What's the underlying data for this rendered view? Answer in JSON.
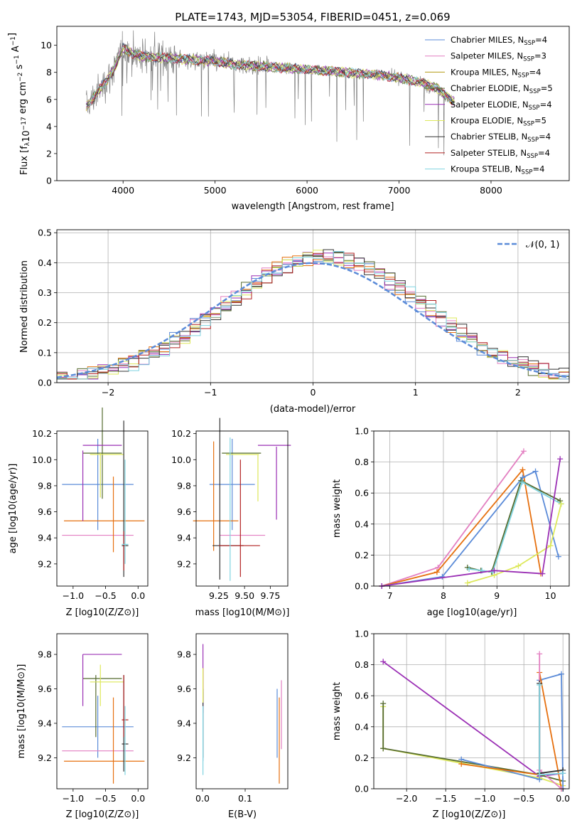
{
  "chart_data": [
    {
      "id": "spectrum",
      "type": "line",
      "title": "PLATE=1743, MJD=53054, FIBERID=0451, z=0.069",
      "xlabel": "wavelength [Angstrom, rest frame]",
      "ylabel": "Flux [f$_\\lambda$10$^{-17}$ erg cm$^{-2}$ s$^{-1}$ A$^{-1}$]",
      "ylabel_parts": [
        "Flux [f",
        "λ",
        "10",
        "−17",
        " erg cm",
        "−2",
        " s",
        "−1",
        " A",
        "−1",
        "]"
      ],
      "xlim": [
        3280,
        8850
      ],
      "ylim": [
        0,
        11.4
      ],
      "xticks": [
        4000,
        5000,
        6000,
        7000,
        8000
      ],
      "yticks": [
        0,
        2,
        4,
        6,
        8,
        10
      ],
      "data_color": "#808080",
      "continuum": {
        "x": [
          3600,
          3700,
          3800,
          3900,
          4000,
          4100,
          4200,
          4400,
          4600,
          4800,
          5000,
          5200,
          5400,
          5600,
          5800,
          6000,
          6200,
          6400,
          6600,
          6800,
          7000,
          7200,
          7400,
          7600
        ],
        "y": [
          5.5,
          6.3,
          7.2,
          8.2,
          9.8,
          9.4,
          9.2,
          9.1,
          9.0,
          8.9,
          8.8,
          8.6,
          8.5,
          8.4,
          8.3,
          8.2,
          8.1,
          8.0,
          7.9,
          7.8,
          7.6,
          7.3,
          6.9,
          5.8
        ]
      },
      "legend_location": "upper right",
      "series": [
        {
          "name_main": "Chabrier MILES, N",
          "name_sub": "SSP",
          "name_tail": "=4",
          "color": "#5b8bd8"
        },
        {
          "name_main": "Salpeter MILES, N",
          "name_sub": "SSP",
          "name_tail": "=3",
          "color": "#e37fc1"
        },
        {
          "name_main": "Kroupa MILES, N",
          "name_sub": "SSP",
          "name_tail": "=4",
          "color": "#b59c14"
        },
        {
          "name_main": "Chabrier ELODIE, N",
          "name_sub": "SSP",
          "name_tail": "=5",
          "color": "#556b2f"
        },
        {
          "name_main": "Salpeter ELODIE, N",
          "name_sub": "SSP",
          "name_tail": "=4",
          "color": "#9b30b5"
        },
        {
          "name_main": "Kroupa ELODIE, N",
          "name_sub": "SSP",
          "name_tail": "=5",
          "color": "#dde85a"
        },
        {
          "name_main": "Chabrier STELIB, N",
          "name_sub": "SSP",
          "name_tail": "=4",
          "color": "#333333"
        },
        {
          "name_main": "Salpeter STELIB, N",
          "name_sub": "SSP",
          "name_tail": "=4",
          "color": "#b22222"
        },
        {
          "name_main": "Kroupa STELIB, N",
          "name_sub": "SSP",
          "name_tail": "=4",
          "color": "#7fd4e0"
        }
      ]
    },
    {
      "id": "residuals",
      "type": "line",
      "xlabel": "(data-model)/error",
      "ylabel": "Normed distribution",
      "xlim": [
        -2.5,
        2.5
      ],
      "ylim": [
        0,
        0.51
      ],
      "xticks": [
        -2,
        -1,
        0,
        1,
        2
      ],
      "xtick_labels": [
        "−2",
        "−1",
        "0",
        "1",
        "2"
      ],
      "yticks": [
        0.0,
        0.1,
        0.2,
        0.3,
        0.4,
        0.5
      ],
      "ytick_labels": [
        "0.0",
        "0.1",
        "0.2",
        "0.3",
        "0.4",
        "0.5"
      ],
      "grid": true,
      "legend_location": "upper right",
      "reference": {
        "name": "𝒩(0, 1)",
        "color": "#5b8bd8",
        "style": "dashed"
      },
      "hist_colors": [
        "#5b8bd8",
        "#e37fc1",
        "#e6700f",
        "#556b2f",
        "#9b30b5",
        "#dde85a",
        "#333333",
        "#b22222",
        "#7fd4e0"
      ]
    },
    {
      "id": "age_vs_Z",
      "type": "scatter",
      "xlabel": "Z [log10(Z/Z⊙)]",
      "ylabel": "age  [log10(age/yr)]",
      "xlim": [
        -1.25,
        0.15
      ],
      "ylim": [
        9.03,
        10.22
      ],
      "xticks": [
        -1.0,
        -0.5,
        0.0
      ],
      "xtick_labels": [
        "−1.0",
        "−0.5",
        "0.0"
      ],
      "yticks": [
        9.2,
        9.4,
        9.6,
        9.8,
        10.0,
        10.2
      ],
      "ytick_labels": [
        "9.2",
        "9.4",
        "9.6",
        "9.8",
        "10.0",
        "10.2"
      ],
      "points": [
        {
          "x": -0.62,
          "xerr": 0.55,
          "y": 9.81,
          "yerr": 0.35,
          "color": "#5b8bd8"
        },
        {
          "x": -0.62,
          "xerr": 0.55,
          "y": 9.42,
          "yerr": 0.0,
          "color": "#e37fc1"
        },
        {
          "x": -0.52,
          "xerr": 0.62,
          "y": 9.53,
          "yerr": 0.0,
          "color": "#e6700f"
        },
        {
          "x": -0.38,
          "xerr": 0.0,
          "y": 9.58,
          "yerr": 0.29,
          "color": "#e6700f"
        },
        {
          "x": -0.55,
          "xerr": 0.3,
          "y": 10.05,
          "yerr": 0.35,
          "color": "#556b2f"
        },
        {
          "x": -0.55,
          "xerr": 0.3,
          "y": 10.11,
          "yerr": 0.0,
          "color": "#9b30b5"
        },
        {
          "x": -0.85,
          "xerr": 0.0,
          "y": 9.8,
          "yerr": 0.27,
          "color": "#9b30b5"
        },
        {
          "x": -0.58,
          "xerr": 0.0,
          "y": 9.88,
          "yerr": 0.17,
          "color": "#dde85a"
        },
        {
          "x": -0.48,
          "xerr": 0.26,
          "y": 10.04,
          "yerr": 0.0,
          "color": "#dde85a"
        },
        {
          "x": -0.22,
          "xerr": 0.0,
          "y": 9.7,
          "yerr": 0.6,
          "color": "#333333"
        },
        {
          "x": -0.2,
          "xerr": 0.05,
          "y": 9.34,
          "yerr": 0.0,
          "color": "#333333"
        },
        {
          "x": -0.22,
          "xerr": 0.0,
          "y": 9.3,
          "yerr": 0.15,
          "color": "#b22222"
        },
        {
          "x": -0.2,
          "xerr": 0.05,
          "y": 9.35,
          "yerr": 0.0,
          "color": "#7fd4e0"
        },
        {
          "x": -0.2,
          "xerr": 0.0,
          "y": 9.6,
          "yerr": 0.4,
          "color": "#7fd4e0"
        }
      ]
    },
    {
      "id": "age_vs_mass",
      "type": "scatter",
      "xlabel": "mass [log10(M/M⊙)]",
      "xlim": [
        9.03,
        9.92
      ],
      "ylim": [
        9.03,
        10.22
      ],
      "xticks": [
        9.25,
        9.5,
        9.75
      ],
      "xtick_labels": [
        "9.25",
        "9.50",
        "9.75"
      ],
      "yticks": [
        9.2,
        9.4,
        9.6,
        9.8,
        10.0,
        10.2
      ],
      "ytick_labels": [
        "9.2",
        "9.4",
        "9.6",
        "9.8",
        "10.0",
        "10.2"
      ],
      "points": [
        {
          "x": 9.38,
          "xerr": 0.22,
          "y": 9.81,
          "yerr": 0.35,
          "color": "#5b8bd8"
        },
        {
          "x": 9.48,
          "xerr": 0.22,
          "y": 9.42,
          "yerr": 0.0,
          "color": "#e37fc1"
        },
        {
          "x": 9.22,
          "xerr": 0.22,
          "y": 9.53,
          "yerr": 0.0,
          "color": "#e6700f"
        },
        {
          "x": 9.2,
          "xerr": 0.0,
          "y": 9.72,
          "yerr": 0.42,
          "color": "#e6700f"
        },
        {
          "x": 9.47,
          "xerr": 0.19,
          "y": 10.05,
          "yerr": 0.0,
          "color": "#556b2f"
        },
        {
          "x": 9.79,
          "xerr": 0.16,
          "y": 10.11,
          "yerr": 0.0,
          "color": "#9b30b5"
        },
        {
          "x": 9.81,
          "xerr": 0.0,
          "y": 9.82,
          "yerr": 0.28,
          "color": "#9b30b5"
        },
        {
          "x": 9.63,
          "xerr": 0.0,
          "y": 9.86,
          "yerr": 0.18,
          "color": "#dde85a"
        },
        {
          "x": 9.48,
          "xerr": 0.16,
          "y": 10.04,
          "yerr": 0.0,
          "color": "#dde85a"
        },
        {
          "x": 9.26,
          "xerr": 0.0,
          "y": 9.7,
          "yerr": 0.62,
          "color": "#333333"
        },
        {
          "x": 9.34,
          "xerr": 0.15,
          "y": 9.34,
          "yerr": 0.0,
          "color": "#333333"
        },
        {
          "x": 9.46,
          "xerr": 0.0,
          "y": 9.55,
          "yerr": 0.45,
          "color": "#b22222"
        },
        {
          "x": 9.45,
          "xerr": 0.2,
          "y": 9.34,
          "yerr": 0.0,
          "color": "#b22222"
        },
        {
          "x": 9.36,
          "xerr": 0.0,
          "y": 9.62,
          "yerr": 0.55,
          "color": "#7fd4e0"
        }
      ]
    },
    {
      "id": "massweight_vs_age",
      "type": "line",
      "xlabel": "age  [log10(age/yr)]",
      "ylabel": "mass weight",
      "xlim": [
        6.7,
        10.35
      ],
      "ylim": [
        0,
        1.0
      ],
      "xticks": [
        7,
        8,
        9,
        10
      ],
      "yticks": [
        0.0,
        0.2,
        0.4,
        0.6,
        0.8,
        1.0
      ],
      "ytick_labels": [
        "0.0",
        "0.2",
        "0.4",
        "0.6",
        "0.8",
        "1.0"
      ],
      "grid": true,
      "series": [
        {
          "color": "#e37fc1",
          "x": [
            6.85,
            7.9,
            9.5
          ],
          "y": [
            0.0,
            0.12,
            0.87
          ]
        },
        {
          "color": "#e6700f",
          "x": [
            6.85,
            7.88,
            9.48,
            9.82
          ],
          "y": [
            0.0,
            0.09,
            0.75,
            0.08
          ]
        },
        {
          "color": "#5b8bd8",
          "x": [
            6.85,
            7.98,
            9.48,
            9.72,
            10.15
          ],
          "y": [
            0.0,
            0.06,
            0.7,
            0.74,
            0.19
          ]
        },
        {
          "color": "#556b2f",
          "x": [
            8.45,
            8.7,
            8.9,
            9.45,
            10.18
          ],
          "y": [
            0.12,
            0.1,
            0.09,
            0.68,
            0.55
          ]
        },
        {
          "color": "#7fd4e0",
          "x": [
            8.48,
            8.72,
            8.92,
            9.47,
            10.2
          ],
          "y": [
            0.11,
            0.1,
            0.09,
            0.67,
            0.53
          ]
        },
        {
          "color": "#dde85a",
          "x": [
            8.45,
            8.95,
            9.4,
            10.0,
            10.2
          ],
          "y": [
            0.02,
            0.07,
            0.13,
            0.26,
            0.53
          ]
        },
        {
          "color": "#9b30b5",
          "x": [
            6.85,
            8.95,
            9.85,
            10.18
          ],
          "y": [
            0.0,
            0.1,
            0.08,
            0.82
          ]
        }
      ]
    },
    {
      "id": "mass_vs_Z",
      "type": "scatter",
      "xlabel": "Z [log10(Z/Z⊙)]",
      "ylabel": "mass [log10(M/M⊙)]",
      "xlim": [
        -1.25,
        0.15
      ],
      "ylim": [
        9.02,
        9.92
      ],
      "xticks": [
        -1.0,
        -0.5,
        0.0
      ],
      "xtick_labels": [
        "−1.0",
        "−0.5",
        "0.0"
      ],
      "yticks": [
        9.2,
        9.4,
        9.6,
        9.8
      ],
      "ytick_labels": [
        "9.2",
        "9.4",
        "9.6",
        "9.8"
      ],
      "points": [
        {
          "x": -0.62,
          "xerr": 0.55,
          "y": 9.38,
          "yerr": 0.18,
          "color": "#5b8bd8"
        },
        {
          "x": -0.62,
          "xerr": 0.55,
          "y": 9.24,
          "yerr": 0.0,
          "color": "#e37fc1"
        },
        {
          "x": -0.52,
          "xerr": 0.62,
          "y": 9.18,
          "yerr": 0.0,
          "color": "#e6700f"
        },
        {
          "x": -0.38,
          "xerr": 0.0,
          "y": 9.3,
          "yerr": 0.25,
          "color": "#e6700f"
        },
        {
          "x": -0.55,
          "xerr": 0.3,
          "y": 9.66,
          "yerr": 0.0,
          "color": "#556b2f"
        },
        {
          "x": -0.65,
          "xerr": 0.0,
          "y": 9.5,
          "yerr": 0.18,
          "color": "#556b2f"
        },
        {
          "x": -0.55,
          "xerr": 0.3,
          "y": 9.8,
          "yerr": 0.0,
          "color": "#9b30b5"
        },
        {
          "x": -0.85,
          "xerr": 0.0,
          "y": 9.65,
          "yerr": 0.15,
          "color": "#9b30b5"
        },
        {
          "x": -0.58,
          "xerr": 0.0,
          "y": 9.62,
          "yerr": 0.12,
          "color": "#dde85a"
        },
        {
          "x": -0.48,
          "xerr": 0.26,
          "y": 9.64,
          "yerr": 0.0,
          "color": "#dde85a"
        },
        {
          "x": -0.22,
          "xerr": 0.0,
          "y": 9.4,
          "yerr": 0.28,
          "color": "#333333"
        },
        {
          "x": -0.2,
          "xerr": 0.05,
          "y": 9.28,
          "yerr": 0.0,
          "color": "#333333"
        },
        {
          "x": -0.22,
          "xerr": 0.0,
          "y": 9.5,
          "yerr": 0.18,
          "color": "#b22222"
        },
        {
          "x": -0.2,
          "xerr": 0.05,
          "y": 9.42,
          "yerr": 0.0,
          "color": "#b22222"
        },
        {
          "x": -0.2,
          "xerr": 0.0,
          "y": 9.3,
          "yerr": 0.2,
          "color": "#7fd4e0"
        }
      ]
    },
    {
      "id": "mass_vs_ebv",
      "type": "scatter",
      "xlabel": "E(B-V)",
      "xlim": [
        -0.015,
        0.2
      ],
      "ylim": [
        9.02,
        9.92
      ],
      "xticks": [
        0.0,
        0.1
      ],
      "xtick_labels": [
        "0.0",
        "0.1"
      ],
      "yticks": [
        9.2,
        9.4,
        9.6,
        9.8
      ],
      "ytick_labels": [
        "9.2",
        "9.4",
        "9.6",
        "9.8"
      ],
      "points": [
        {
          "x": 0.001,
          "y": 9.38,
          "yerr": 0.2,
          "color": "#5b8bd8"
        },
        {
          "x": 0.001,
          "y": 9.66,
          "yerr": 0.2,
          "color": "#9b30b5"
        },
        {
          "x": 0.001,
          "y": 9.62,
          "yerr": 0.1,
          "color": "#b22222"
        },
        {
          "x": 0.001,
          "y": 9.4,
          "yerr": 0.2,
          "color": "#333333"
        },
        {
          "x": 0.001,
          "y": 9.62,
          "yerr": 0.1,
          "color": "#dde85a"
        },
        {
          "x": 0.001,
          "y": 9.3,
          "yerr": 0.2,
          "color": "#7fd4e0"
        },
        {
          "x": 0.175,
          "y": 9.4,
          "yerr": 0.2,
          "color": "#5b8bd8"
        },
        {
          "x": 0.18,
          "y": 9.3,
          "yerr": 0.25,
          "color": "#e6700f"
        },
        {
          "x": 0.185,
          "y": 9.45,
          "yerr": 0.2,
          "color": "#e37fc1"
        }
      ]
    },
    {
      "id": "massweight_vs_Z",
      "type": "line",
      "xlabel": "Z [log10(Z/Z⊙)]",
      "ylabel": "mass weight",
      "xlim": [
        -2.42,
        0.08
      ],
      "ylim": [
        0,
        1.0
      ],
      "xticks": [
        -2.0,
        -1.5,
        -1.0,
        -0.5,
        0.0
      ],
      "xtick_labels": [
        "−2.0",
        "−1.5",
        "−1.0",
        "−0.5",
        "0.0"
      ],
      "yticks": [
        0.0,
        0.2,
        0.4,
        0.6,
        0.8,
        1.0
      ],
      "ytick_labels": [
        "0.0",
        "0.2",
        "0.4",
        "0.6",
        "0.8",
        "1.0"
      ],
      "grid": true,
      "series": [
        {
          "color": "#9b30b5",
          "x": [
            -2.3,
            -0.3,
            0.0
          ],
          "y": [
            0.82,
            0.08,
            0.1
          ]
        },
        {
          "color": "#dde85a",
          "x": [
            -2.3,
            -2.3,
            -0.3,
            0.0
          ],
          "y": [
            0.53,
            0.26,
            0.07,
            0.02
          ]
        },
        {
          "color": "#556b2f",
          "x": [
            -2.3,
            -2.3,
            -0.3,
            0.0
          ],
          "y": [
            0.55,
            0.26,
            0.09,
            0.05
          ]
        },
        {
          "color": "#5b8bd8",
          "x": [
            -1.3,
            -0.3,
            -0.3,
            -0.02,
            0.0
          ],
          "y": [
            0.19,
            0.06,
            0.7,
            0.74,
            0.0
          ]
        },
        {
          "color": "#e6700f",
          "x": [
            -1.3,
            -0.3,
            -0.3,
            -0.02
          ],
          "y": [
            0.16,
            0.09,
            0.75,
            0.0
          ]
        },
        {
          "color": "#e37fc1",
          "x": [
            -0.3,
            -0.3,
            -0.02
          ],
          "y": [
            0.87,
            0.12,
            0.0
          ]
        },
        {
          "color": "#333333",
          "x": [
            -0.3,
            -0.3,
            0.0
          ],
          "y": [
            0.68,
            0.1,
            0.12
          ]
        },
        {
          "color": "#7fd4e0",
          "x": [
            -0.3,
            -0.3,
            0.0
          ],
          "y": [
            0.67,
            0.09,
            0.1
          ]
        }
      ]
    }
  ]
}
